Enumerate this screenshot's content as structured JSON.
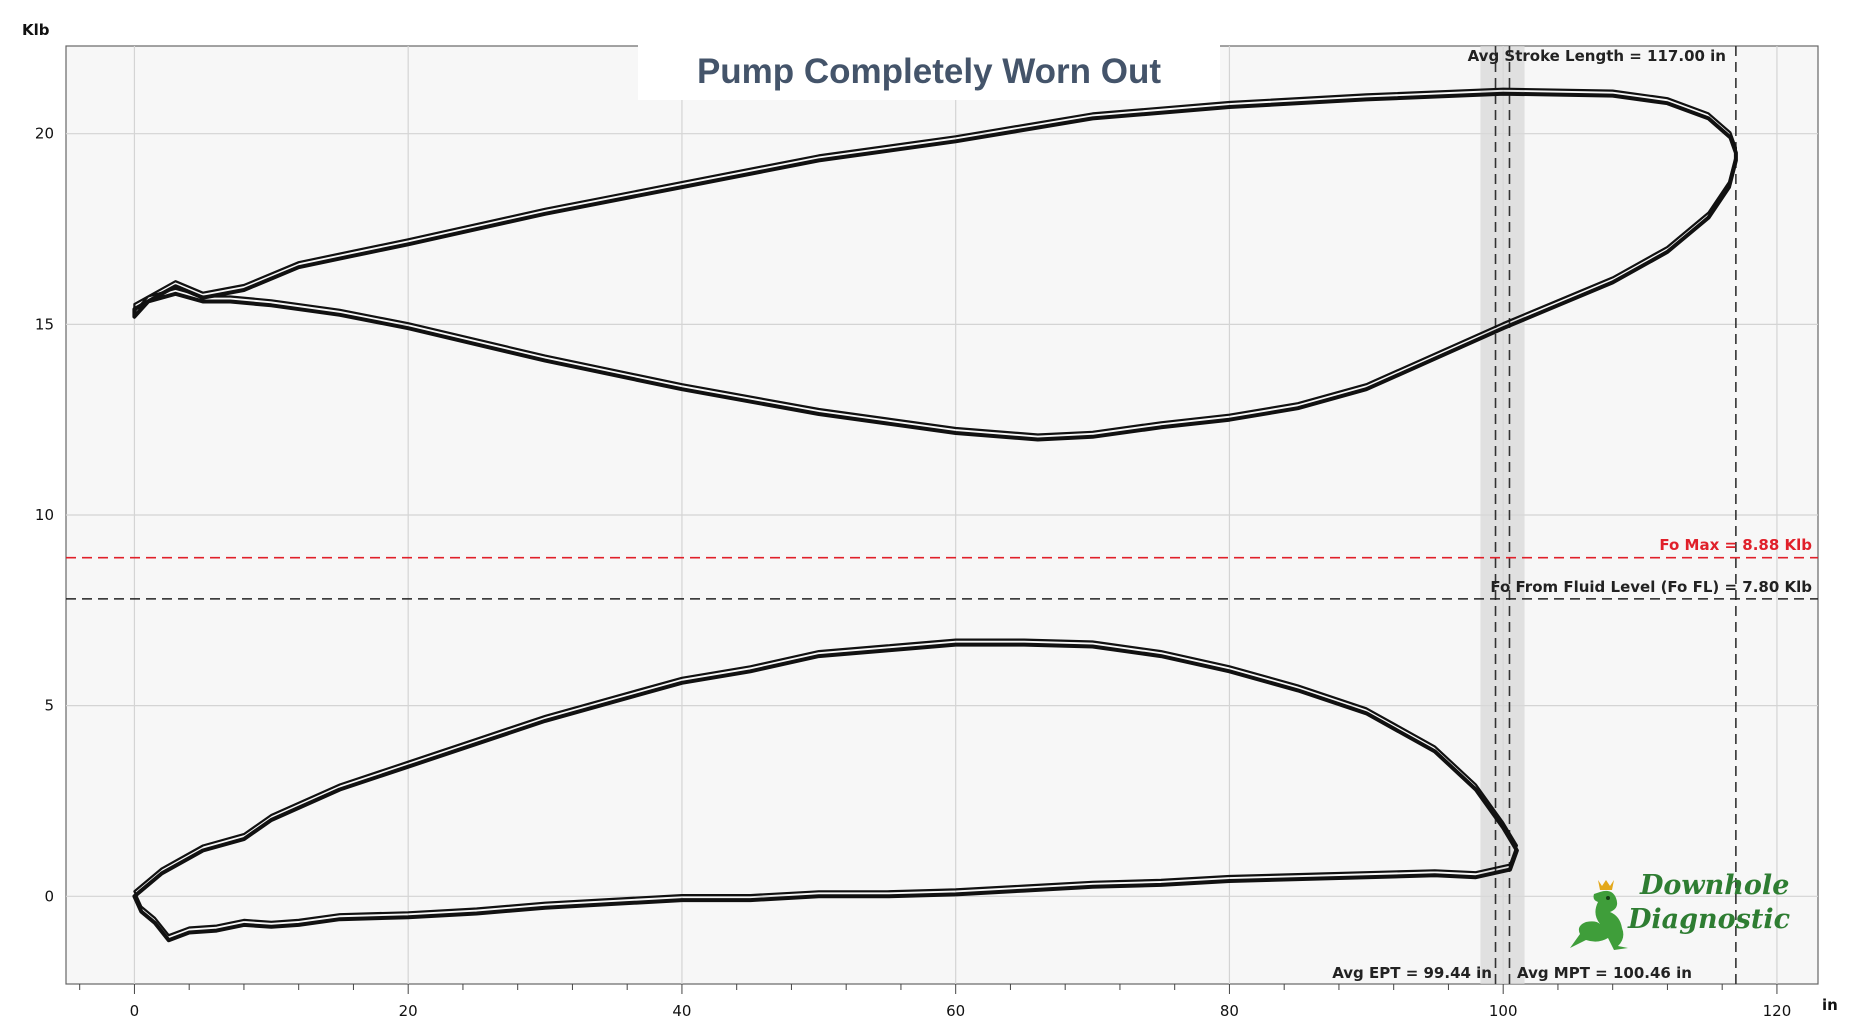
{
  "chart_data": {
    "type": "line",
    "title": "Pump Completely Worn Out",
    "xunit": "in",
    "yunit": "Klb",
    "xlim": [
      -5,
      123
    ],
    "ylim": [
      -2.3,
      22.3
    ],
    "xticks": [
      0,
      20,
      40,
      60,
      80,
      100,
      120
    ],
    "yticks": [
      0,
      5,
      10,
      15,
      20
    ],
    "grid": true,
    "series": [
      {
        "role": "surface-card",
        "color": "#111111",
        "upstroke": [
          [
            0,
            15.4
          ],
          [
            2,
            15.8
          ],
          [
            3,
            16.0
          ],
          [
            5,
            15.7
          ],
          [
            8,
            15.9
          ],
          [
            12,
            16.5
          ],
          [
            16,
            16.8
          ],
          [
            20,
            17.1
          ],
          [
            30,
            17.9
          ],
          [
            40,
            18.6
          ],
          [
            50,
            19.3
          ],
          [
            60,
            19.8
          ],
          [
            70,
            20.4
          ],
          [
            80,
            20.7
          ],
          [
            90,
            20.9
          ],
          [
            100,
            21.05
          ],
          [
            108,
            21.0
          ],
          [
            112,
            20.8
          ],
          [
            115,
            20.4
          ],
          [
            116.6,
            19.9
          ],
          [
            117,
            19.5
          ]
        ],
        "downstroke": [
          [
            117,
            19.3
          ],
          [
            116.5,
            18.6
          ],
          [
            115,
            17.8
          ],
          [
            112,
            16.9
          ],
          [
            108,
            16.1
          ],
          [
            104,
            15.5
          ],
          [
            100,
            14.9
          ],
          [
            95,
            14.1
          ],
          [
            90,
            13.3
          ],
          [
            85,
            12.8
          ],
          [
            80,
            12.5
          ],
          [
            75,
            12.3
          ],
          [
            70,
            12.05
          ],
          [
            66,
            11.98
          ],
          [
            60,
            12.15
          ],
          [
            55,
            12.4
          ],
          [
            50,
            12.65
          ],
          [
            40,
            13.3
          ],
          [
            30,
            14.05
          ],
          [
            20,
            14.9
          ],
          [
            15,
            15.25
          ],
          [
            10,
            15.5
          ],
          [
            7,
            15.6
          ],
          [
            5,
            15.6
          ],
          [
            3,
            15.8
          ],
          [
            1,
            15.6
          ],
          [
            0,
            15.2
          ]
        ]
      },
      {
        "role": "pump-card",
        "color": "#111111",
        "upstroke": [
          [
            0,
            0.0
          ],
          [
            2,
            0.6
          ],
          [
            5,
            1.2
          ],
          [
            8,
            1.5
          ],
          [
            10,
            2.0
          ],
          [
            15,
            2.8
          ],
          [
            20,
            3.4
          ],
          [
            25,
            4.0
          ],
          [
            30,
            4.6
          ],
          [
            35,
            5.1
          ],
          [
            40,
            5.6
          ],
          [
            45,
            5.9
          ],
          [
            50,
            6.3
          ],
          [
            55,
            6.45
          ],
          [
            60,
            6.6
          ],
          [
            65,
            6.6
          ],
          [
            70,
            6.55
          ],
          [
            75,
            6.3
          ],
          [
            80,
            5.9
          ],
          [
            85,
            5.4
          ],
          [
            90,
            4.8
          ],
          [
            95,
            3.8
          ],
          [
            98,
            2.8
          ],
          [
            100,
            1.8
          ],
          [
            101,
            1.2
          ],
          [
            100.5,
            0.7
          ]
        ],
        "downstroke": [
          [
            100.5,
            0.7
          ],
          [
            98,
            0.5
          ],
          [
            95,
            0.55
          ],
          [
            90,
            0.5
          ],
          [
            85,
            0.45
          ],
          [
            80,
            0.4
          ],
          [
            75,
            0.3
          ],
          [
            70,
            0.25
          ],
          [
            65,
            0.15
          ],
          [
            60,
            0.05
          ],
          [
            55,
            0.0
          ],
          [
            50,
            0.0
          ],
          [
            45,
            -0.1
          ],
          [
            40,
            -0.1
          ],
          [
            35,
            -0.2
          ],
          [
            30,
            -0.3
          ],
          [
            25,
            -0.45
          ],
          [
            20,
            -0.55
          ],
          [
            15,
            -0.6
          ],
          [
            12,
            -0.75
          ],
          [
            10,
            -0.8
          ],
          [
            8,
            -0.75
          ],
          [
            6,
            -0.9
          ],
          [
            4,
            -0.95
          ],
          [
            2.5,
            -1.15
          ],
          [
            1.5,
            -0.7
          ],
          [
            0.5,
            -0.4
          ],
          [
            0,
            0.0
          ]
        ]
      }
    ],
    "reference_lines": {
      "fo_max": {
        "label": "Fo Max = 8.88 Klb",
        "y": 8.88,
        "color": "#e0202a"
      },
      "fo_fl": {
        "label": "Fo From Fluid Level (Fo FL) = 7.80 Klb",
        "y": 7.8,
        "color": "#222222"
      },
      "stroke": {
        "label": "Avg Stroke Length = 117.00 in",
        "x": 117.0
      },
      "ept": {
        "label": "Avg EPT = 99.44 in",
        "x": 99.44
      },
      "mpt": {
        "label": "Avg MPT = 100.46 in",
        "x": 100.46
      }
    }
  },
  "logo": {
    "line1": "Downhole",
    "line2": "Diagnostic",
    "icon": "dragon-icon"
  }
}
